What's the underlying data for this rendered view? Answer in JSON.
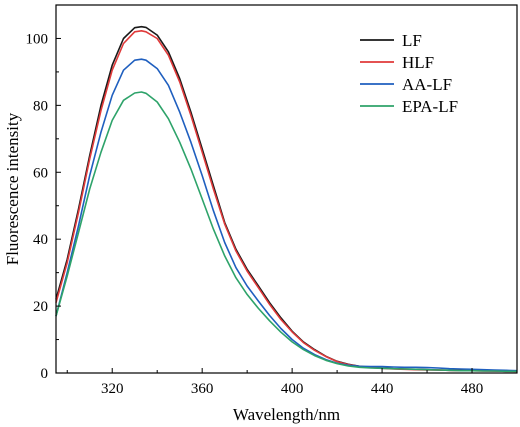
{
  "chart_data": {
    "type": "line",
    "title": "",
    "xlabel": "Wavelength/nm",
    "ylabel": "Fluorescence intensity",
    "xlim": [
      295,
      500
    ],
    "ylim": [
      0,
      110
    ],
    "xticks": [
      320,
      360,
      400,
      440,
      480
    ],
    "yticks": [
      0,
      20,
      40,
      60,
      80,
      100
    ],
    "grid": false,
    "legend_position": "top-right",
    "x": [
      295,
      300,
      305,
      310,
      315,
      320,
      325,
      330,
      333,
      335,
      340,
      345,
      350,
      355,
      360,
      365,
      370,
      375,
      380,
      385,
      390,
      395,
      400,
      405,
      410,
      415,
      420,
      425,
      430,
      435,
      440,
      445,
      450,
      455,
      460,
      465,
      470,
      475,
      480,
      485,
      490,
      495,
      500
    ],
    "series": [
      {
        "name": "LF",
        "color": "#1a1a1a",
        "values": [
          22,
          34,
          49,
          65,
          80,
          92,
          100,
          103.2,
          103.5,
          103.3,
          101,
          96,
          88,
          78,
          67,
          56,
          45,
          37,
          31,
          26,
          21,
          16.5,
          12.5,
          9.3,
          7,
          5,
          3.5,
          2.6,
          2,
          1.7,
          1.5,
          1.3,
          1.2,
          1.1,
          1.0,
          0.9,
          0.8,
          0.8,
          0.7,
          0.7,
          0.6,
          0.6,
          0.5
        ]
      },
      {
        "name": "HLF",
        "color": "#e03a3a",
        "values": [
          21,
          33,
          48,
          64,
          78.5,
          90.5,
          98.5,
          102,
          102.3,
          102,
          100,
          95,
          87,
          77,
          66,
          55,
          44.5,
          36.5,
          30.5,
          25.5,
          20.5,
          16,
          12.3,
          9.1,
          6.8,
          4.9,
          3.4,
          2.5,
          1.9,
          1.6,
          1.4,
          1.2,
          1.1,
          1.0,
          0.9,
          0.9,
          0.8,
          0.7,
          0.7,
          0.6,
          0.6,
          0.5,
          0.5
        ]
      },
      {
        "name": "AA-LF",
        "color": "#1f5fbf",
        "values": [
          17,
          30,
          44,
          59,
          72,
          83,
          90.5,
          93.5,
          93.8,
          93.5,
          91,
          86,
          78,
          69,
          59,
          48.5,
          39,
          31.5,
          26,
          21.5,
          17.2,
          13.3,
          10,
          7.4,
          5.5,
          4,
          2.9,
          2.3,
          2,
          1.9,
          1.9,
          1.8,
          1.7,
          1.7,
          1.6,
          1.5,
          1.3,
          1.2,
          1.1,
          1.0,
          0.9,
          0.8,
          0.7
        ]
      },
      {
        "name": "EPA-LF",
        "color": "#2ea36a",
        "values": [
          17,
          29,
          42,
          55,
          66,
          75.5,
          81.5,
          83.7,
          84,
          83.6,
          81,
          76,
          69,
          61,
          52,
          43,
          35,
          28.5,
          23.5,
          19.3,
          15.6,
          12.2,
          9.3,
          7,
          5.2,
          3.8,
          2.8,
          2.1,
          1.7,
          1.5,
          1.4,
          1.3,
          1.2,
          1.1,
          1.0,
          0.9,
          0.8,
          0.7,
          0.7,
          0.6,
          0.6,
          0.5,
          0.5
        ]
      }
    ]
  }
}
